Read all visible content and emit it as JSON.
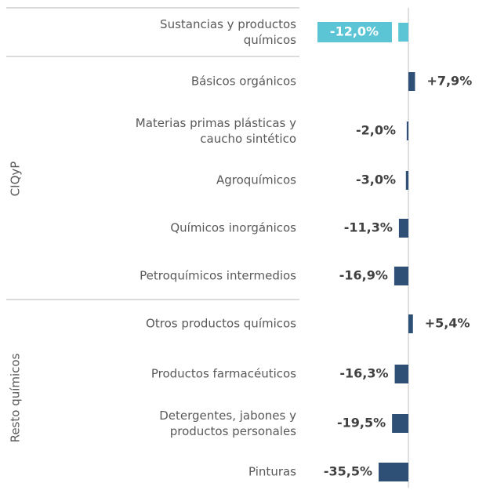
{
  "chart_data": {
    "type": "bar",
    "orientation": "horizontal",
    "categories": [
      "Sustancias y productos\nquímicos",
      "Básicos orgánicos",
      "Materias primas plásticas y\ncaucho sintético",
      "Agroquímicos",
      "Químicos inorgánicos",
      "Petroquímicos intermedios",
      "Otros productos químicos",
      "Productos farmacéuticos",
      "Detergentes, jabones y\nproductos personales",
      "Pinturas"
    ],
    "values": [
      -12.0,
      7.9,
      -2.0,
      -3.0,
      -11.3,
      -16.9,
      5.4,
      -16.3,
      -19.5,
      -35.5
    ],
    "value_labels": [
      "-12,0%",
      "+7,9%",
      "-2,0%",
      "-3,0%",
      "-11,3%",
      "-16,9%",
      "+5,4%",
      "-16,3%",
      "-19,5%",
      "-35,5%"
    ],
    "colors": [
      "#5bc5d5",
      "#2e5077",
      "#2e5077",
      "#2e5077",
      "#2e5077",
      "#2e5077",
      "#2e5077",
      "#2e5077",
      "#2e5077",
      "#2e5077"
    ],
    "groups": [
      {
        "name": "CIQyP",
        "count": 5
      },
      {
        "name": "Resto químicos",
        "count": 4
      }
    ]
  }
}
